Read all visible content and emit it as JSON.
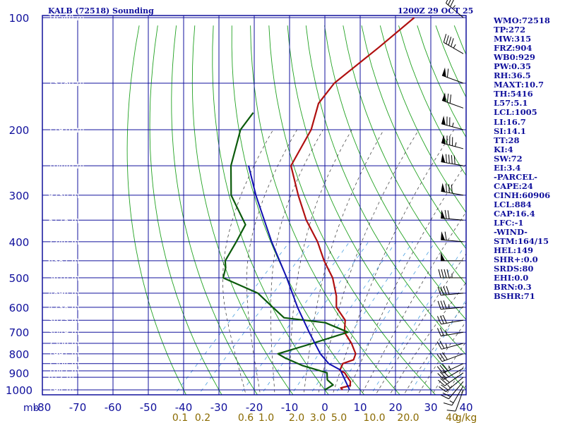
{
  "title_left": "KALB (72518) Sounding",
  "title_right": "1200Z 29 OCT 25",
  "pressure_unit_label": "mb",
  "mixing_ratio_unit_label": "g/kg",
  "colors": {
    "frame": "#10109c",
    "dry_adiabat": "#22a222",
    "moist_adiabat": "#333333",
    "mixing_ratio": "#4aa0e0",
    "temperature": "#b01010",
    "dewpoint": "#0b5a0b",
    "parcel": "#1010b0",
    "height_label": "#ffffff",
    "mixing_ratio_label": "#8a6a00"
  },
  "stats": [
    "WMO:72518",
    "TP:272",
    "MW:315",
    "FRZ:904",
    "WB0:929",
    "PW:0.35",
    "RH:36.5",
    "MAXT:10.7",
    "TH:5416",
    "L57:5.1",
    "LCL:1005",
    "LI:16.7",
    "SI:14.1",
    "TT:28",
    "KI:4",
    "SW:72",
    "EI:3.4",
    "-PARCEL-",
    "CAPE:24",
    "CINH:60906",
    "LCL:884",
    "CAP:16.4",
    "LFC:-1",
    "-WIND-",
    "STM:164/15",
    "HEL:149",
    "SHR+:0.0",
    "SRDS:80",
    "EHI:0.0",
    "BRN:0.3",
    "BSHR:71"
  ],
  "chart_data": {
    "type": "skew-t",
    "y_axis": {
      "label": "mb",
      "scale": "log",
      "range": [
        1050,
        100
      ],
      "ticks": [
        100,
        200,
        300,
        400,
        500,
        600,
        700,
        800,
        900,
        1000
      ]
    },
    "x_axis": {
      "unit": "°C",
      "range": [
        -80,
        40
      ],
      "ticks": [
        -80,
        -70,
        -60,
        -50,
        -40,
        -30,
        -20,
        -10,
        0,
        10,
        20,
        30,
        40
      ]
    },
    "mixing_ratio_labels": [
      "0.1",
      "0.2",
      "0.6",
      "1.0",
      "2.0",
      "3.0",
      "5.0",
      "10.0",
      "20.0",
      "40",
      "g/kg"
    ],
    "height_labels": [
      {
        "p": 1000,
        "text": "194 m"
      },
      {
        "p": 925,
        "text": "612 m"
      },
      {
        "p": 889,
        "text": "1047 m"
      },
      {
        "p": 850,
        "text": "1504 m"
      },
      {
        "p": 800,
        "text": "1991 m"
      },
      {
        "p": 750,
        "text": "2506 m"
      },
      {
        "p": 700,
        "text": "3049 m"
      },
      {
        "p": 650,
        "text": "3623 m"
      },
      {
        "p": 600,
        "text": "4238 m"
      },
      {
        "p": 550,
        "text": "4896 m"
      },
      {
        "p": 500,
        "text": "5610 m"
      },
      {
        "p": 450,
        "text": "6387 m"
      },
      {
        "p": 400,
        "text": "7240 m"
      },
      {
        "p": 350,
        "text": "8178 m"
      },
      {
        "p": 300,
        "text": "9230 m"
      },
      {
        "p": 250,
        "text": "10440 m"
      },
      {
        "p": 200,
        "text": "11910 m"
      },
      {
        "p": 150,
        "text": "13780 m"
      },
      {
        "p": 100,
        "text": "16540 m"
      }
    ],
    "series": [
      {
        "name": "temperature",
        "points": [
          [
            1000,
            5
          ],
          [
            988,
            4
          ],
          [
            974,
            6
          ],
          [
            950,
            5
          ],
          [
            925,
            3
          ],
          [
            900,
            1
          ],
          [
            887,
            -1
          ],
          [
            850,
            -2
          ],
          [
            830,
            0
          ],
          [
            800,
            -1
          ],
          [
            750,
            -5
          ],
          [
            700,
            -10
          ],
          [
            650,
            -13
          ],
          [
            600,
            -19
          ],
          [
            560,
            -22
          ],
          [
            500,
            -28
          ],
          [
            450,
            -35
          ],
          [
            400,
            -42
          ],
          [
            350,
            -51
          ],
          [
            300,
            -60
          ],
          [
            250,
            -70
          ],
          [
            200,
            -74
          ],
          [
            170,
            -79
          ],
          [
            150,
            -80
          ],
          [
            120,
            -77
          ],
          [
            100,
            -75
          ]
        ]
      },
      {
        "name": "dewpoint",
        "points": [
          [
            1000,
            0
          ],
          [
            970,
            1
          ],
          [
            940,
            -2
          ],
          [
            900,
            -4
          ],
          [
            860,
            -13
          ],
          [
            820,
            -20
          ],
          [
            800,
            -23
          ],
          [
            750,
            -16
          ],
          [
            700,
            -9
          ],
          [
            660,
            -18
          ],
          [
            640,
            -31
          ],
          [
            600,
            -37
          ],
          [
            550,
            -45
          ],
          [
            500,
            -59
          ],
          [
            470,
            -61
          ],
          [
            450,
            -63
          ],
          [
            400,
            -65
          ],
          [
            360,
            -67
          ],
          [
            300,
            -79
          ],
          [
            250,
            -87
          ],
          [
            200,
            -94
          ],
          [
            180,
            -95
          ]
        ]
      },
      {
        "name": "parcel",
        "points": [
          [
            1000,
            7
          ],
          [
            884,
            -1
          ],
          [
            850,
            -6
          ],
          [
            800,
            -11
          ],
          [
            700,
            -20
          ],
          [
            600,
            -30
          ],
          [
            500,
            -41
          ],
          [
            400,
            -55
          ],
          [
            300,
            -72
          ],
          [
            250,
            -82
          ]
        ]
      }
    ],
    "wind_barbs": [
      {
        "p": 1000,
        "dir": 200,
        "spd": 10
      },
      {
        "p": 975,
        "dir": 210,
        "spd": 15
      },
      {
        "p": 950,
        "dir": 220,
        "spd": 20
      },
      {
        "p": 925,
        "dir": 230,
        "spd": 25
      },
      {
        "p": 900,
        "dir": 235,
        "spd": 30
      },
      {
        "p": 875,
        "dir": 240,
        "spd": 30
      },
      {
        "p": 850,
        "dir": 245,
        "spd": 35
      },
      {
        "p": 800,
        "dir": 250,
        "spd": 30
      },
      {
        "p": 750,
        "dir": 255,
        "spd": 25
      },
      {
        "p": 700,
        "dir": 260,
        "spd": 25
      },
      {
        "p": 650,
        "dir": 260,
        "spd": 30
      },
      {
        "p": 600,
        "dir": 265,
        "spd": 35
      },
      {
        "p": 550,
        "dir": 265,
        "spd": 40
      },
      {
        "p": 500,
        "dir": 270,
        "spd": 45
      },
      {
        "p": 450,
        "dir": 270,
        "spd": 50
      },
      {
        "p": 400,
        "dir": 275,
        "spd": 60
      },
      {
        "p": 350,
        "dir": 275,
        "spd": 70
      },
      {
        "p": 300,
        "dir": 280,
        "spd": 80
      },
      {
        "p": 250,
        "dir": 280,
        "spd": 90
      },
      {
        "p": 225,
        "dir": 285,
        "spd": 85
      },
      {
        "p": 200,
        "dir": 285,
        "spd": 75
      },
      {
        "p": 175,
        "dir": 290,
        "spd": 70
      },
      {
        "p": 150,
        "dir": 290,
        "spd": 60
      },
      {
        "p": 125,
        "dir": 300,
        "spd": 45
      },
      {
        "p": 100,
        "dir": 310,
        "spd": 35
      }
    ]
  }
}
